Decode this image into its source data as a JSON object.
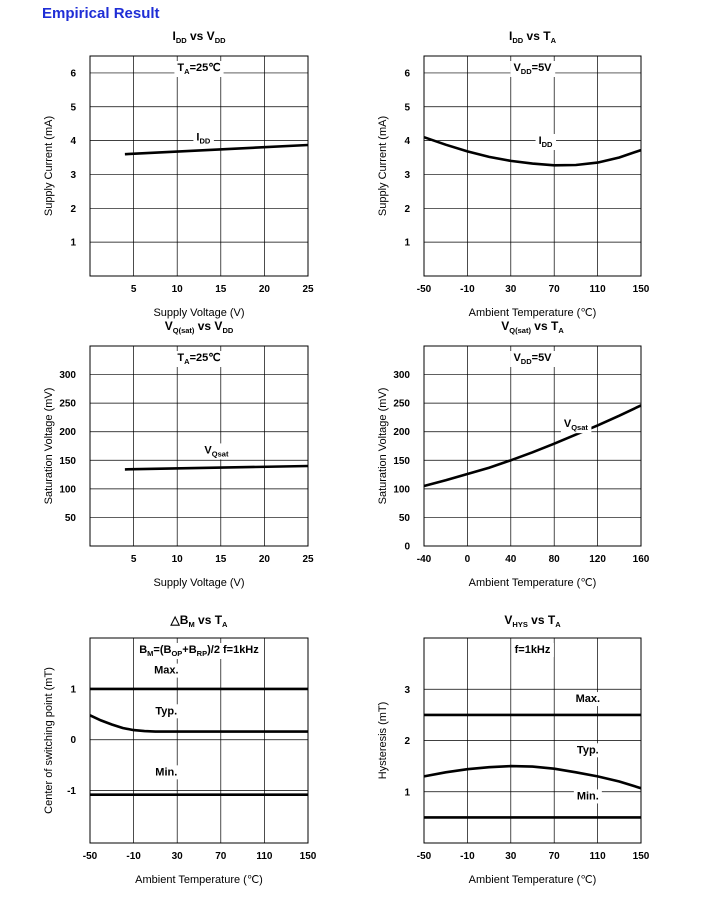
{
  "heading": "Empirical Result",
  "chart_data": [
    {
      "type": "line",
      "title": {
        "main": "I",
        "sub": "DD",
        "rest": " vs V",
        "sub2": "DD"
      },
      "xlabel": "Supply Voltage (V)",
      "ylabel": "Supply Current (mA)",
      "xticks": [
        5,
        10,
        15,
        20,
        25
      ],
      "xlim": [
        0,
        25
      ],
      "yticks": [
        1,
        2,
        3,
        4,
        5,
        6
      ],
      "ylim": [
        0,
        6.5
      ],
      "grid": true,
      "condition": {
        "pre": "T",
        "sub": "A",
        "post": "=25℃"
      },
      "series": [
        {
          "label": {
            "pre": "I",
            "sub": "DD"
          },
          "x": [
            4,
            25
          ],
          "y": [
            3.6,
            3.87
          ]
        }
      ]
    },
    {
      "type": "line",
      "title": {
        "main": "I",
        "sub": "DD",
        "rest": " vs T",
        "sub2": "A"
      },
      "xlabel": "Ambient Temperature (℃)",
      "ylabel": "Supply Current (mA)",
      "xticks": [
        -50,
        -10,
        30,
        70,
        110,
        150
      ],
      "xlim": [
        -50,
        150
      ],
      "yticks": [
        1,
        2,
        3,
        4,
        5,
        6
      ],
      "ylim": [
        0,
        6.5
      ],
      "grid": true,
      "condition": {
        "pre": "V",
        "sub": "DD",
        "post": "=5V"
      },
      "series": [
        {
          "label": {
            "pre": "I",
            "sub": "DD"
          },
          "x": [
            -50,
            -30,
            -10,
            10,
            30,
            50,
            70,
            90,
            110,
            130,
            150
          ],
          "y": [
            4.1,
            3.88,
            3.68,
            3.52,
            3.4,
            3.32,
            3.27,
            3.28,
            3.35,
            3.5,
            3.72
          ]
        }
      ]
    },
    {
      "type": "line",
      "title": {
        "main": "V",
        "sub": "Q(sat)",
        "rest": " vs V",
        "sub2": "DD"
      },
      "xlabel": "Supply Voltage (V)",
      "ylabel": "Saturation Voltage (mV)",
      "xticks": [
        5,
        10,
        15,
        20,
        25
      ],
      "xlim": [
        0,
        25
      ],
      "yticks": [
        50,
        100,
        150,
        200,
        250,
        300
      ],
      "ylim": [
        0,
        350
      ],
      "grid": true,
      "condition": {
        "pre": "T",
        "sub": "A",
        "post": "=25℃"
      },
      "series": [
        {
          "label": {
            "pre": "V",
            "sub": "Qsat"
          },
          "x": [
            4,
            25
          ],
          "y": [
            134,
            140
          ]
        }
      ]
    },
    {
      "type": "line",
      "title": {
        "main": "V",
        "sub": "Q(sat)",
        "rest": " vs T",
        "sub2": "A"
      },
      "xlabel": "Ambient Temperature (℃)",
      "ylabel": "Saturation Voltage (mV)",
      "xticks": [
        -40,
        0,
        40,
        80,
        120,
        160
      ],
      "xlim": [
        -40,
        160
      ],
      "yticks": [
        0,
        50,
        100,
        150,
        200,
        250,
        300
      ],
      "ylim": [
        0,
        350
      ],
      "grid": true,
      "condition": {
        "pre": "V",
        "sub": "DD",
        "post": "=5V"
      },
      "series": [
        {
          "label": {
            "pre": "V",
            "sub": "Qsat"
          },
          "x": [
            -40,
            -20,
            0,
            20,
            40,
            60,
            80,
            100,
            120,
            140,
            160
          ],
          "y": [
            105,
            115,
            126,
            137,
            150,
            164,
            179,
            195,
            211,
            228,
            246
          ]
        }
      ]
    },
    {
      "type": "line",
      "title": {
        "main": "△B",
        "sub": "M",
        "rest": " vs T",
        "sub2": "A"
      },
      "xlabel": "Ambient Temperature (℃)",
      "ylabel": "Center of switching point (mT)",
      "xticks": [
        -50,
        -10,
        30,
        70,
        110,
        150
      ],
      "xlim": [
        -50,
        150
      ],
      "yticks": [
        -1,
        0,
        1
      ],
      "ylim": [
        -2.03,
        2.0
      ],
      "grid": true,
      "condition_text": "B_M=(B_OP+B_RP)/2   f=1kHz",
      "condition": {
        "pre": "B",
        "sub": "M",
        "mid": "=(B",
        "sub2": "OP",
        "mid2": "+B",
        "sub3": "RP",
        "post": ")/2   f=1kHz"
      },
      "series": [
        {
          "name": "Max.",
          "x": [
            -50,
            150
          ],
          "y": [
            1.0,
            1.0
          ]
        },
        {
          "name": "Typ.",
          "x": [
            -50,
            -40,
            -30,
            -20,
            -10,
            0,
            10,
            30,
            70,
            110,
            150
          ],
          "y": [
            0.48,
            0.38,
            0.3,
            0.23,
            0.19,
            0.17,
            0.16,
            0.16,
            0.16,
            0.16,
            0.16
          ]
        },
        {
          "name": "Min.",
          "x": [
            -50,
            150
          ],
          "y": [
            -1.08,
            -1.08
          ],
          "color": "#6b2b2b"
        }
      ]
    },
    {
      "type": "line",
      "title": {
        "main": "V",
        "sub": "HYS",
        "rest": " vs T",
        "sub2": "A"
      },
      "xlabel": "Ambient Temperature (℃)",
      "ylabel": "Hysteresis (mT)",
      "xticks": [
        -50,
        -10,
        30,
        70,
        110,
        150
      ],
      "xlim": [
        -50,
        150
      ],
      "yticks": [
        1,
        2,
        3
      ],
      "ylim": [
        0,
        4.0
      ],
      "grid": true,
      "condition": {
        "pre": "",
        "sub": "",
        "post": "f=1kHz"
      },
      "series": [
        {
          "name": "Max.",
          "x": [
            -50,
            150
          ],
          "y": [
            2.5,
            2.5
          ]
        },
        {
          "name": "Typ.",
          "x": [
            -50,
            -30,
            -10,
            10,
            30,
            50,
            70,
            90,
            110,
            130,
            150
          ],
          "y": [
            1.3,
            1.38,
            1.44,
            1.48,
            1.5,
            1.49,
            1.45,
            1.38,
            1.3,
            1.2,
            1.07
          ]
        },
        {
          "name": "Min.",
          "x": [
            -50,
            150
          ],
          "y": [
            0.5,
            0.5
          ]
        }
      ]
    }
  ]
}
